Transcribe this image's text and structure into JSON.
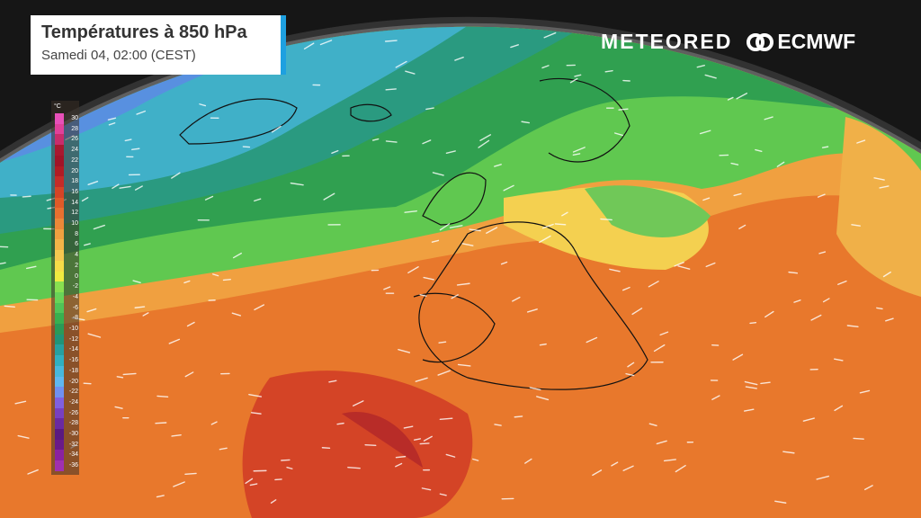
{
  "header": {
    "title": "Températures à 850 hPa",
    "subtitle": "Samedi 04, 02:00 (CEST)",
    "accent": "#1ea0e0"
  },
  "logos": {
    "meteored": "METEORED",
    "ecmwf": "ECMWF"
  },
  "legend": {
    "unit": "°C",
    "labels": [
      "30",
      "28",
      "26",
      "24",
      "22",
      "20",
      "18",
      "16",
      "14",
      "12",
      "10",
      "8",
      "6",
      "4",
      "2",
      "0",
      "-2",
      "-4",
      "-6",
      "-8",
      "-10",
      "-12",
      "-14",
      "-16",
      "-18",
      "-20",
      "-22",
      "-24",
      "-26",
      "-28",
      "-30",
      "-32",
      "-34",
      "-36"
    ],
    "colors": [
      "#e850b8",
      "#e0409a",
      "#c82c6c",
      "#a81830",
      "#a01428",
      "#b01c24",
      "#c42c28",
      "#d44426",
      "#e05a28",
      "#e87030",
      "#ec8838",
      "#f0a040",
      "#f4b448",
      "#f6c850",
      "#f6dc48",
      "#f0ea40",
      "#88e050",
      "#68d458",
      "#50c458",
      "#38b050",
      "#2a9a58",
      "#209478",
      "#26a0a0",
      "#30b0c0",
      "#48b8dc",
      "#60b8f0",
      "#7090f0",
      "#8060e0",
      "#7840c0",
      "#6a2aa0",
      "#5a1a80",
      "#6a1a88",
      "#8a22a0",
      "#a030b0"
    ]
  }
}
